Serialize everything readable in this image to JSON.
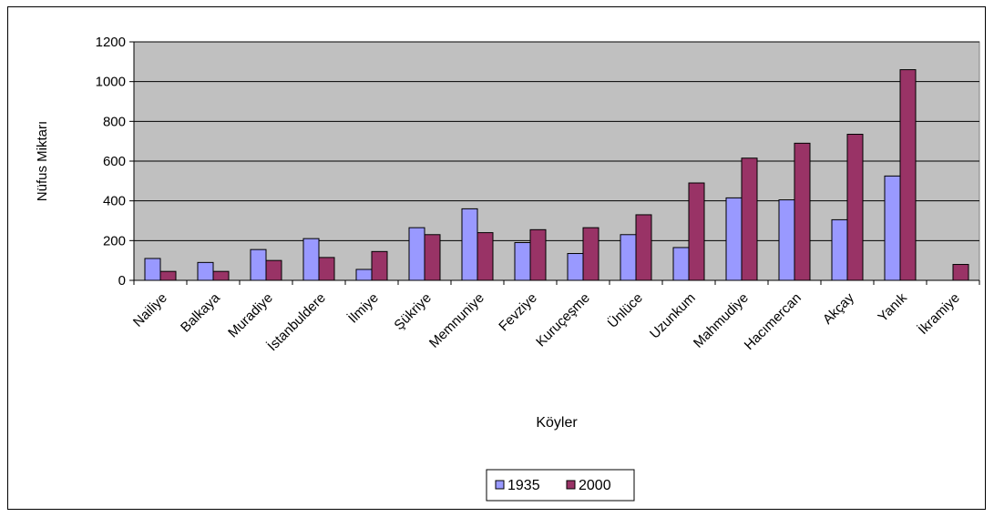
{
  "chart_data": {
    "type": "bar",
    "title": "",
    "xlabel": "Köyler",
    "ylabel": "Nüfus Miktarı",
    "ylim": [
      0,
      1200
    ],
    "yticks": [
      0,
      200,
      400,
      600,
      800,
      1000,
      1200
    ],
    "grid": true,
    "legend_position": "bottom",
    "categories": [
      "Nailiye",
      "Balkaya",
      "Muradiye",
      "İstanbuldere",
      "İlmiye",
      "Şükriye",
      "Memnuniye",
      "Fevziye",
      "Kuruçeşme",
      "Ünlüce",
      "Uzunkum",
      "Mahmudiye",
      "Hacımercan",
      "Akçay",
      "Yanık",
      "İkramiye"
    ],
    "series": [
      {
        "name": "1935",
        "color": "#9999ff",
        "values": [
          110,
          90,
          155,
          210,
          55,
          265,
          360,
          190,
          135,
          230,
          165,
          415,
          405,
          305,
          525,
          0
        ]
      },
      {
        "name": "2000",
        "color": "#993366",
        "values": [
          45,
          45,
          100,
          115,
          145,
          230,
          240,
          255,
          265,
          330,
          490,
          615,
          690,
          735,
          1060,
          80
        ]
      }
    ],
    "plot_background": "#c0c0c0"
  }
}
